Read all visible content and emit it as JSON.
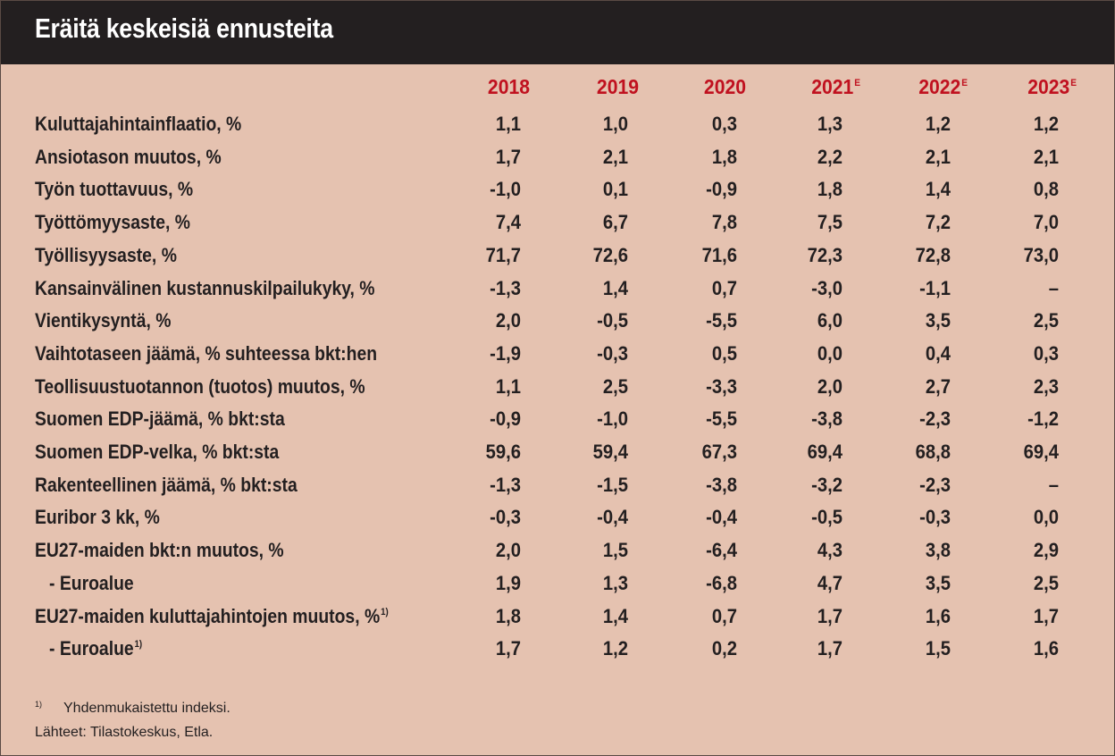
{
  "title": "Eräitä keskeisiä ennusteita",
  "years": [
    {
      "label": "2018",
      "sup": ""
    },
    {
      "label": "2019",
      "sup": ""
    },
    {
      "label": "2020",
      "sup": ""
    },
    {
      "label": "2021",
      "sup": "E"
    },
    {
      "label": "2022",
      "sup": "E"
    },
    {
      "label": "2023",
      "sup": "E"
    }
  ],
  "rows": [
    {
      "label": "Kuluttajahintainflaatio, %",
      "sup": "",
      "indent": false,
      "values": [
        "1,1",
        "1,0",
        "0,3",
        "1,3",
        "1,2",
        "1,2"
      ]
    },
    {
      "label": "Ansiotason muutos, %",
      "sup": "",
      "indent": false,
      "values": [
        "1,7",
        "2,1",
        "1,8",
        "2,2",
        "2,1",
        "2,1"
      ]
    },
    {
      "label": "Työn tuottavuus, %",
      "sup": "",
      "indent": false,
      "values": [
        "-1,0",
        "0,1",
        "-0,9",
        "1,8",
        "1,4",
        "0,8"
      ]
    },
    {
      "label": "Työttömyysaste, %",
      "sup": "",
      "indent": false,
      "values": [
        "7,4",
        "6,7",
        "7,8",
        "7,5",
        "7,2",
        "7,0"
      ]
    },
    {
      "label": "Työllisyysaste, %",
      "sup": "",
      "indent": false,
      "values": [
        "71,7",
        "72,6",
        "71,6",
        "72,3",
        "72,8",
        "73,0"
      ]
    },
    {
      "label": "Kansainvälinen kustannuskilpailukyky, %",
      "sup": "",
      "indent": false,
      "values": [
        "-1,3",
        "1,4",
        "0,7",
        "-3,0",
        "-1,1",
        "–"
      ]
    },
    {
      "label": "Vientikysyntä, %",
      "sup": "",
      "indent": false,
      "values": [
        "2,0",
        "-0,5",
        "-5,5",
        "6,0",
        "3,5",
        "2,5"
      ]
    },
    {
      "label": "Vaihtotaseen jäämä, % suhteessa bkt:hen",
      "sup": "",
      "indent": false,
      "values": [
        "-1,9",
        "-0,3",
        "0,5",
        "0,0",
        "0,4",
        "0,3"
      ]
    },
    {
      "label": "Teollisuustuotannon (tuotos) muutos, %",
      "sup": "",
      "indent": false,
      "values": [
        "1,1",
        "2,5",
        "-3,3",
        "2,0",
        "2,7",
        "2,3"
      ]
    },
    {
      "label": "Suomen EDP-jäämä, % bkt:sta",
      "sup": "",
      "indent": false,
      "values": [
        "-0,9",
        "-1,0",
        "-5,5",
        "-3,8",
        "-2,3",
        "-1,2"
      ]
    },
    {
      "label": "Suomen EDP-velka, % bkt:sta",
      "sup": "",
      "indent": false,
      "values": [
        "59,6",
        "59,4",
        "67,3",
        "69,4",
        "68,8",
        "69,4"
      ]
    },
    {
      "label": "Rakenteellinen jäämä, % bkt:sta",
      "sup": "",
      "indent": false,
      "values": [
        "-1,3",
        "-1,5",
        "-3,8",
        "-3,2",
        "-2,3",
        "–"
      ]
    },
    {
      "label": "Euribor 3 kk, %",
      "sup": "",
      "indent": false,
      "values": [
        "-0,3",
        "-0,4",
        "-0,4",
        "-0,5",
        "-0,3",
        "0,0"
      ]
    },
    {
      "label": "EU27-maiden bkt:n muutos, %",
      "sup": "",
      "indent": false,
      "values": [
        "2,0",
        "1,5",
        "-6,4",
        "4,3",
        "3,8",
        "2,9"
      ]
    },
    {
      "label": "- Euroalue",
      "sup": "",
      "indent": true,
      "values": [
        "1,9",
        "1,3",
        "-6,8",
        "4,7",
        "3,5",
        "2,5"
      ]
    },
    {
      "label": "EU27-maiden kuluttajahintojen muutos, %",
      "sup": "1)",
      "indent": false,
      "values": [
        "1,8",
        "1,4",
        "0,7",
        "1,7",
        "1,6",
        "1,7"
      ]
    },
    {
      "label": "- Euroalue",
      "sup": "1)",
      "indent": true,
      "values": [
        "1,7",
        "1,2",
        "0,2",
        "1,7",
        "1,5",
        "1,6"
      ]
    }
  ],
  "footnotes": {
    "mark": "1)",
    "note": "Yhdenmukaistettu indeksi.",
    "source": "Lähteet: Tilastokeskus, Etla."
  }
}
